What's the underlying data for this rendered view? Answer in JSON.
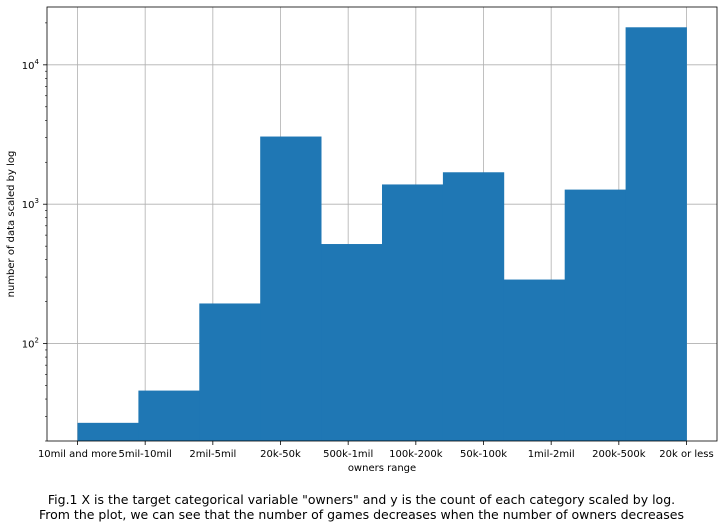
{
  "chart_data": {
    "type": "bar",
    "categories": [
      "10mil and more",
      "5mil-10mil",
      "2mil-5mil",
      "20k-50k",
      "500k-1mil",
      "100k-200k",
      "50k-100k",
      "1mil-2mil",
      "200k-500k",
      "20k or less"
    ],
    "values": [
      27,
      46,
      194,
      3059,
      518,
      1386,
      1695,
      288,
      1273,
      18596
    ],
    "xlabel": "owners range",
    "ylabel": "number of data scaled by log",
    "yscale": "log",
    "ylim": [
      20,
      26000
    ],
    "ytick_labels": [
      {
        "base": "10",
        "exp": "2",
        "value": 100
      },
      {
        "base": "10",
        "exp": "3",
        "value": 1000
      },
      {
        "base": "10",
        "exp": "4",
        "value": 10000
      }
    ],
    "grid": true,
    "bar_color": "#1f77b4"
  },
  "caption": {
    "line1": "Fig.1 X is the target categorical variable \"owners\" and y is the count of each category scaled by log.",
    "line2": "From the plot, we can see that the number of games decreases when the number of owners decreases"
  }
}
